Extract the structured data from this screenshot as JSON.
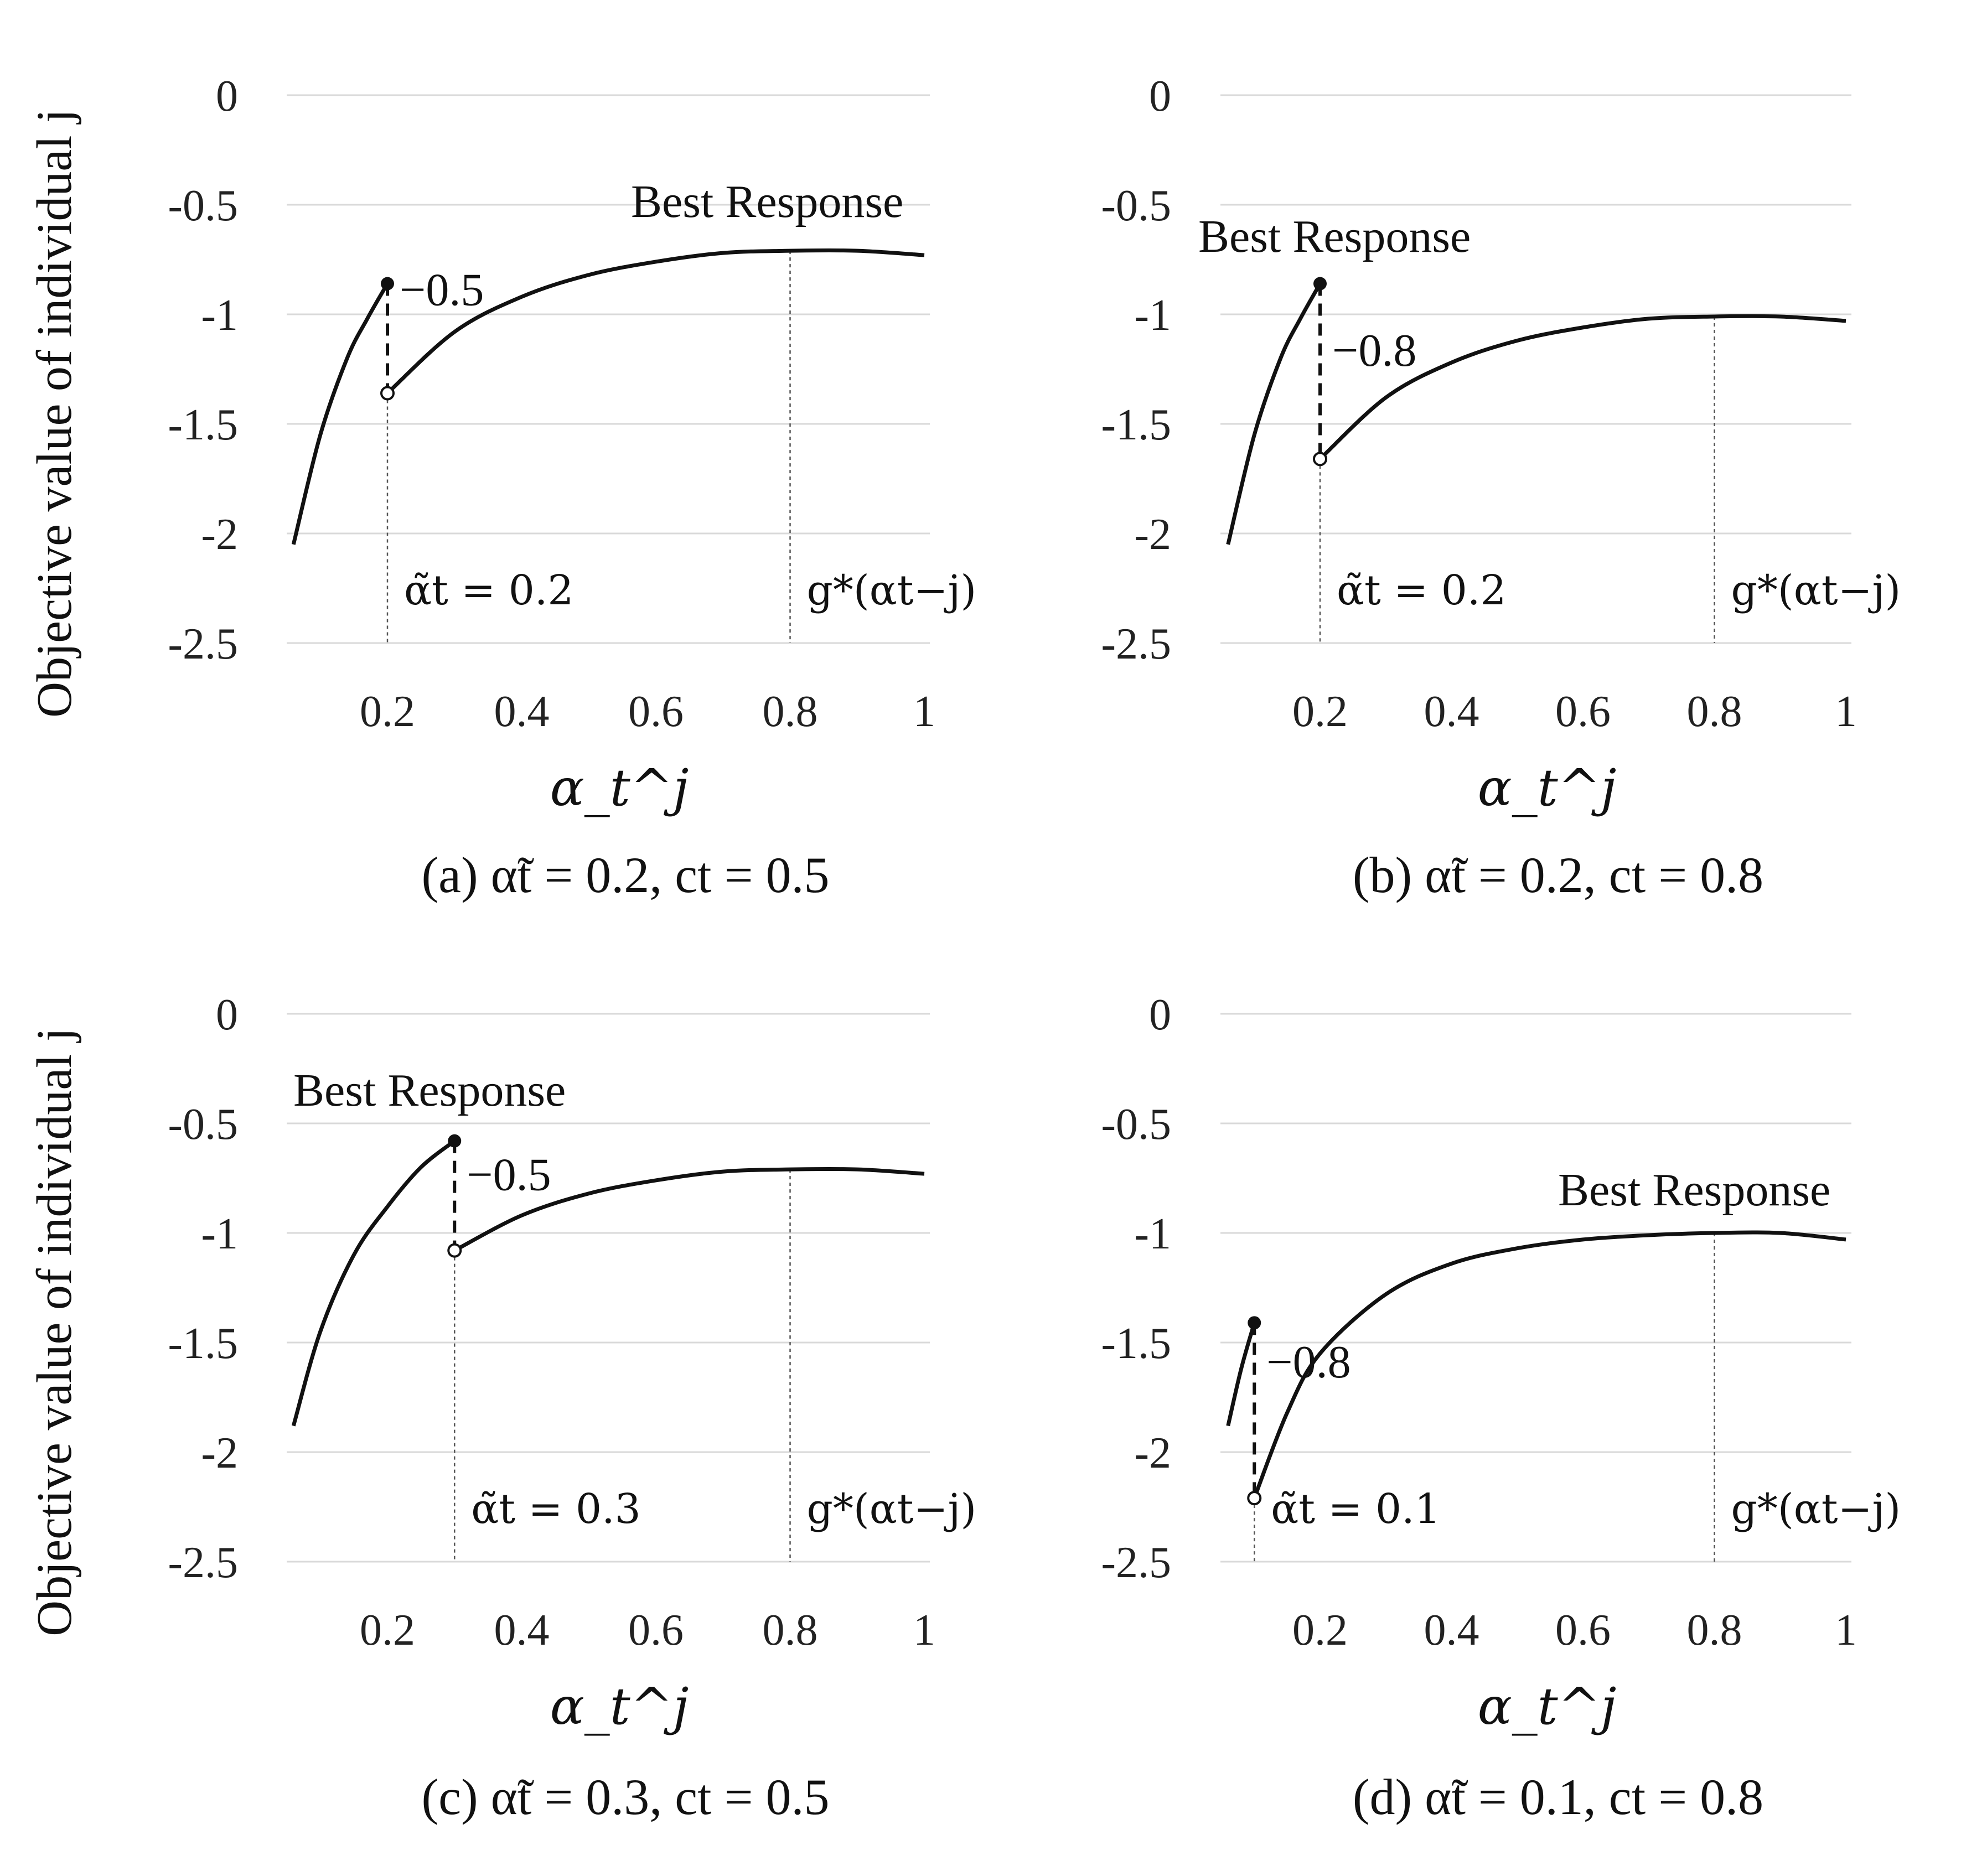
{
  "y_axis_label": "Objective value of individual j",
  "chart_data": [
    {
      "type": "line",
      "caption": "(a) α̃t = 0.2, ct = 0.5",
      "xlabel": "α_t^j",
      "ylabel": "Objective value of individual j",
      "x_ticks": [
        0.2,
        0.4,
        0.6,
        0.8,
        1
      ],
      "y_ticks": [
        0,
        -0.5,
        -1,
        -1.5,
        -2,
        -2.5
      ],
      "ylim": [
        -2.5,
        0
      ],
      "xlim": [
        0.05,
        1
      ],
      "threshold": 0.2,
      "threshold_label": "α̃t = 0.2",
      "best_x": 0.8,
      "best_label": "g*(αt−j)",
      "annotation": "Best Response",
      "jump_label": "−0.5",
      "left_segment": {
        "x": [
          0.06,
          0.1,
          0.14,
          0.17,
          0.2
        ],
        "y": [
          -2.05,
          -1.55,
          -1.2,
          -1.02,
          -0.86
        ]
      },
      "right_segment": {
        "x": [
          0.2,
          0.3,
          0.4,
          0.5,
          0.6,
          0.7,
          0.8,
          0.9,
          1.0
        ],
        "y": [
          -1.36,
          -1.08,
          -0.92,
          -0.82,
          -0.76,
          -0.72,
          -0.71,
          -0.71,
          -0.73
        ]
      },
      "filled_point": {
        "x": 0.2,
        "y": -0.86
      },
      "open_point": {
        "x": 0.2,
        "y": -1.36
      }
    },
    {
      "type": "line",
      "caption": "(b) α̃t = 0.2, ct = 0.8",
      "xlabel": "α_t^j",
      "ylabel": "",
      "x_ticks": [
        0.2,
        0.4,
        0.6,
        0.8,
        1
      ],
      "y_ticks": [
        0,
        -0.5,
        -1,
        -1.5,
        -2,
        -2.5
      ],
      "ylim": [
        -2.5,
        0
      ],
      "xlim": [
        0.05,
        1
      ],
      "threshold": 0.2,
      "threshold_label": "α̃t = 0.2",
      "best_x": 0.8,
      "best_label": "g*(αt−j)",
      "annotation": "Best Response",
      "jump_label": "−0.8",
      "left_segment": {
        "x": [
          0.06,
          0.1,
          0.14,
          0.17,
          0.2
        ],
        "y": [
          -2.05,
          -1.55,
          -1.2,
          -1.02,
          -0.86
        ]
      },
      "right_segment": {
        "x": [
          0.2,
          0.3,
          0.4,
          0.5,
          0.6,
          0.7,
          0.8,
          0.9,
          1.0
        ],
        "y": [
          -1.66,
          -1.38,
          -1.22,
          -1.12,
          -1.06,
          -1.02,
          -1.01,
          -1.01,
          -1.03
        ]
      },
      "filled_point": {
        "x": 0.2,
        "y": -0.86
      },
      "open_point": {
        "x": 0.2,
        "y": -1.66
      }
    },
    {
      "type": "line",
      "caption": "(c) α̃t = 0.3, ct = 0.5",
      "xlabel": "α_t^j",
      "ylabel": "Objective value of individual j",
      "x_ticks": [
        0.2,
        0.4,
        0.6,
        0.8,
        1
      ],
      "y_ticks": [
        0,
        -0.5,
        -1,
        -1.5,
        -2,
        -2.5
      ],
      "ylim": [
        -2.5,
        0
      ],
      "xlim": [
        0.05,
        1
      ],
      "threshold": 0.3,
      "threshold_label": "α̃t = 0.3",
      "best_x": 0.8,
      "best_label": "g*(αt−j)",
      "annotation": "Best Response",
      "jump_label": "−0.5",
      "left_segment": {
        "x": [
          0.06,
          0.1,
          0.15,
          0.2,
          0.25,
          0.3
        ],
        "y": [
          -1.88,
          -1.45,
          -1.1,
          -0.88,
          -0.7,
          -0.58
        ]
      },
      "right_segment": {
        "x": [
          0.3,
          0.4,
          0.5,
          0.6,
          0.7,
          0.8,
          0.9,
          1.0
        ],
        "y": [
          -1.08,
          -0.92,
          -0.82,
          -0.76,
          -0.72,
          -0.71,
          -0.71,
          -0.73
        ]
      },
      "filled_point": {
        "x": 0.3,
        "y": -0.58
      },
      "open_point": {
        "x": 0.3,
        "y": -1.08
      }
    },
    {
      "type": "line",
      "caption": "(d) α̃t = 0.1, ct = 0.8",
      "xlabel": "α_t^j",
      "ylabel": "",
      "x_ticks": [
        0.2,
        0.4,
        0.6,
        0.8,
        1
      ],
      "y_ticks": [
        0,
        -0.5,
        -1,
        -1.5,
        -2,
        -2.5
      ],
      "ylim": [
        -2.5,
        0
      ],
      "xlim": [
        0.05,
        1
      ],
      "threshold": 0.1,
      "threshold_label": "α̃t = 0.1",
      "best_x": 0.8,
      "best_label": "g*(αt−j)",
      "annotation": "Best Response",
      "jump_label": "−0.8",
      "left_segment": {
        "x": [
          0.06,
          0.08,
          0.1
        ],
        "y": [
          -1.88,
          -1.62,
          -1.41
        ]
      },
      "right_segment": {
        "x": [
          0.1,
          0.15,
          0.2,
          0.3,
          0.4,
          0.5,
          0.6,
          0.7,
          0.8,
          0.9,
          1.0
        ],
        "y": [
          -2.21,
          -1.82,
          -1.55,
          -1.28,
          -1.14,
          -1.07,
          -1.03,
          -1.01,
          -1.0,
          -1.0,
          -1.03
        ]
      },
      "filled_point": {
        "x": 0.1,
        "y": -1.41
      },
      "open_point": {
        "x": 0.1,
        "y": -2.21
      }
    }
  ]
}
